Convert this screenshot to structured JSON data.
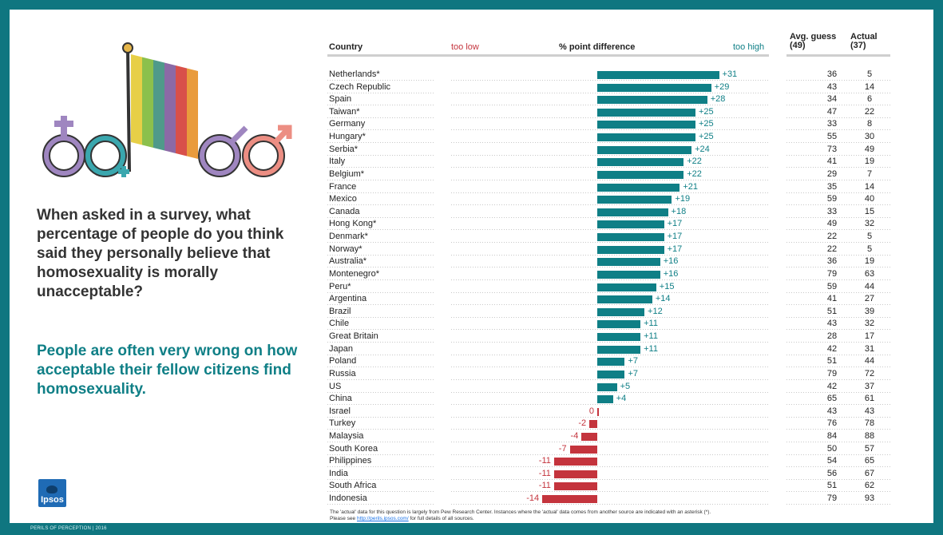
{
  "question": "When asked in a survey, what percentage of people do you think said they personally believe that homosexuality is morally unacceptable?",
  "answer": "People are often very wrong on how acceptable their fellow citizens find homosexuality.",
  "footer": "PERILS OF PERCEPTION | 2016",
  "logo_text": "Ipsos",
  "colors": {
    "frame": "#0f7680",
    "positive": "#0f7f86",
    "negative": "#c4343d"
  },
  "chart_data": {
    "type": "bar",
    "headers": {
      "country": "Country",
      "too_low": "too low",
      "diff": "% point difference",
      "too_high": "too high",
      "guess": "Avg. guess",
      "guess_sub": "(49)",
      "actual": "Actual",
      "actual_sub": "(37)"
    },
    "rows": [
      {
        "country": "Netherlands*",
        "diff": 31,
        "label": "+31",
        "guess": 36,
        "actual": 5
      },
      {
        "country": "Czech Republic",
        "diff": 29,
        "label": "+29",
        "guess": 43,
        "actual": 14
      },
      {
        "country": "Spain",
        "diff": 28,
        "label": "+28",
        "guess": 34,
        "actual": 6
      },
      {
        "country": "Taiwan*",
        "diff": 25,
        "label": "+25",
        "guess": 47,
        "actual": 22
      },
      {
        "country": "Germany",
        "diff": 25,
        "label": "+25",
        "guess": 33,
        "actual": 8
      },
      {
        "country": "Hungary*",
        "diff": 25,
        "label": "+25",
        "guess": 55,
        "actual": 30
      },
      {
        "country": "Serbia*",
        "diff": 24,
        "label": "+24",
        "guess": 73,
        "actual": 49
      },
      {
        "country": "Italy",
        "diff": 22,
        "label": "+22",
        "guess": 41,
        "actual": 19
      },
      {
        "country": "Belgium*",
        "diff": 22,
        "label": "+22",
        "guess": 29,
        "actual": 7
      },
      {
        "country": "France",
        "diff": 21,
        "label": "+21",
        "guess": 35,
        "actual": 14
      },
      {
        "country": "Mexico",
        "diff": 19,
        "label": "+19",
        "guess": 59,
        "actual": 40
      },
      {
        "country": "Canada",
        "diff": 18,
        "label": "+18",
        "guess": 33,
        "actual": 15
      },
      {
        "country": "Hong Kong*",
        "diff": 17,
        "label": "+17",
        "guess": 49,
        "actual": 32
      },
      {
        "country": "Denmark*",
        "diff": 17,
        "label": "+17",
        "guess": 22,
        "actual": 5
      },
      {
        "country": "Norway*",
        "diff": 17,
        "label": "+17",
        "guess": 22,
        "actual": 5
      },
      {
        "country": "Australia*",
        "diff": 16,
        "label": "+16",
        "guess": 36,
        "actual": 19
      },
      {
        "country": "Montenegro*",
        "diff": 16,
        "label": "+16",
        "guess": 79,
        "actual": 63
      },
      {
        "country": "Peru*",
        "diff": 15,
        "label": "+15",
        "guess": 59,
        "actual": 44
      },
      {
        "country": "Argentina",
        "diff": 14,
        "label": "+14",
        "guess": 41,
        "actual": 27
      },
      {
        "country": "Brazil",
        "diff": 12,
        "label": "+12",
        "guess": 51,
        "actual": 39
      },
      {
        "country": "Chile",
        "diff": 11,
        "label": "+11",
        "guess": 43,
        "actual": 32
      },
      {
        "country": "Great Britain",
        "diff": 11,
        "label": "+11",
        "guess": 28,
        "actual": 17
      },
      {
        "country": "Japan",
        "diff": 11,
        "label": "+11",
        "guess": 42,
        "actual": 31
      },
      {
        "country": "Poland",
        "diff": 7,
        "label": "+7",
        "guess": 51,
        "actual": 44
      },
      {
        "country": "Russia",
        "diff": 7,
        "label": "+7",
        "guess": 79,
        "actual": 72
      },
      {
        "country": "US",
        "diff": 5,
        "label": "+5",
        "guess": 42,
        "actual": 37
      },
      {
        "country": "China",
        "diff": 4,
        "label": "+4",
        "guess": 65,
        "actual": 61
      },
      {
        "country": "Israel",
        "diff": 0,
        "label": "0",
        "guess": 43,
        "actual": 43
      },
      {
        "country": "Turkey",
        "diff": -2,
        "label": "-2",
        "guess": 76,
        "actual": 78
      },
      {
        "country": "Malaysia",
        "diff": -4,
        "label": "-4",
        "guess": 84,
        "actual": 88
      },
      {
        "country": "South Korea",
        "diff": -7,
        "label": "-7",
        "guess": 50,
        "actual": 57
      },
      {
        "country": "Philippines",
        "diff": -11,
        "label": "-11",
        "guess": 54,
        "actual": 65
      },
      {
        "country": "India",
        "diff": -11,
        "label": "-11",
        "guess": 56,
        "actual": 67
      },
      {
        "country": "South Africa",
        "diff": -11,
        "label": "-11",
        "guess": 51,
        "actual": 62
      },
      {
        "country": "Indonesia",
        "diff": -14,
        "label": "-14",
        "guess": 79,
        "actual": 93
      }
    ]
  },
  "note": {
    "line1": "The 'actual' data for this question is largely from Pew Research Center. Instances where the 'actual' data comes from another source are indicated with an asterisk (*).",
    "line2_pre": "Please see",
    "link": "http://perils.ipsos.com/",
    "line2_post": "for full details of all sources."
  }
}
